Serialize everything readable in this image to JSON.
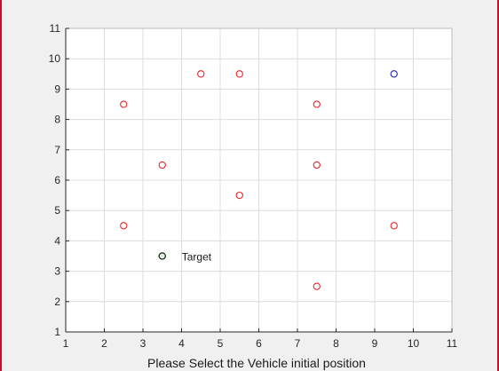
{
  "chart_data": {
    "type": "scatter",
    "title": "",
    "xlabel": "Please Select the Vehicle initial position",
    "ylabel": "",
    "xlim": [
      1,
      11
    ],
    "ylim": [
      1,
      11
    ],
    "xticks": [
      1,
      2,
      3,
      4,
      5,
      6,
      7,
      8,
      9,
      10,
      11
    ],
    "yticks": [
      1,
      2,
      3,
      4,
      5,
      6,
      7,
      8,
      9,
      10,
      11
    ],
    "grid": true,
    "series": [
      {
        "marker": "circle",
        "color": "#e8262a",
        "points": [
          [
            2.5,
            8.5
          ],
          [
            4.5,
            9.5
          ],
          [
            5.5,
            9.5
          ],
          [
            7.5,
            8.5
          ],
          [
            3.5,
            6.5
          ],
          [
            7.5,
            6.5
          ],
          [
            5.5,
            5.5
          ],
          [
            2.5,
            4.5
          ],
          [
            9.5,
            4.5
          ],
          [
            7.5,
            2.5
          ]
        ]
      },
      {
        "marker": "circle",
        "color": "#1f1fb4",
        "points": [
          [
            9.5,
            9.5
          ]
        ]
      },
      {
        "marker": "circle",
        "color": "#0a6e0a",
        "points": [
          [
            3.5,
            3.5
          ]
        ]
      }
    ],
    "annotations": [
      {
        "text": "Target",
        "x": 3.5,
        "y": 3.5
      }
    ]
  },
  "colors": {
    "axes_background": "#ffffff",
    "grid": "#dcdcdc",
    "axis": "#262626",
    "figure_background": "#f0f0f0"
  }
}
